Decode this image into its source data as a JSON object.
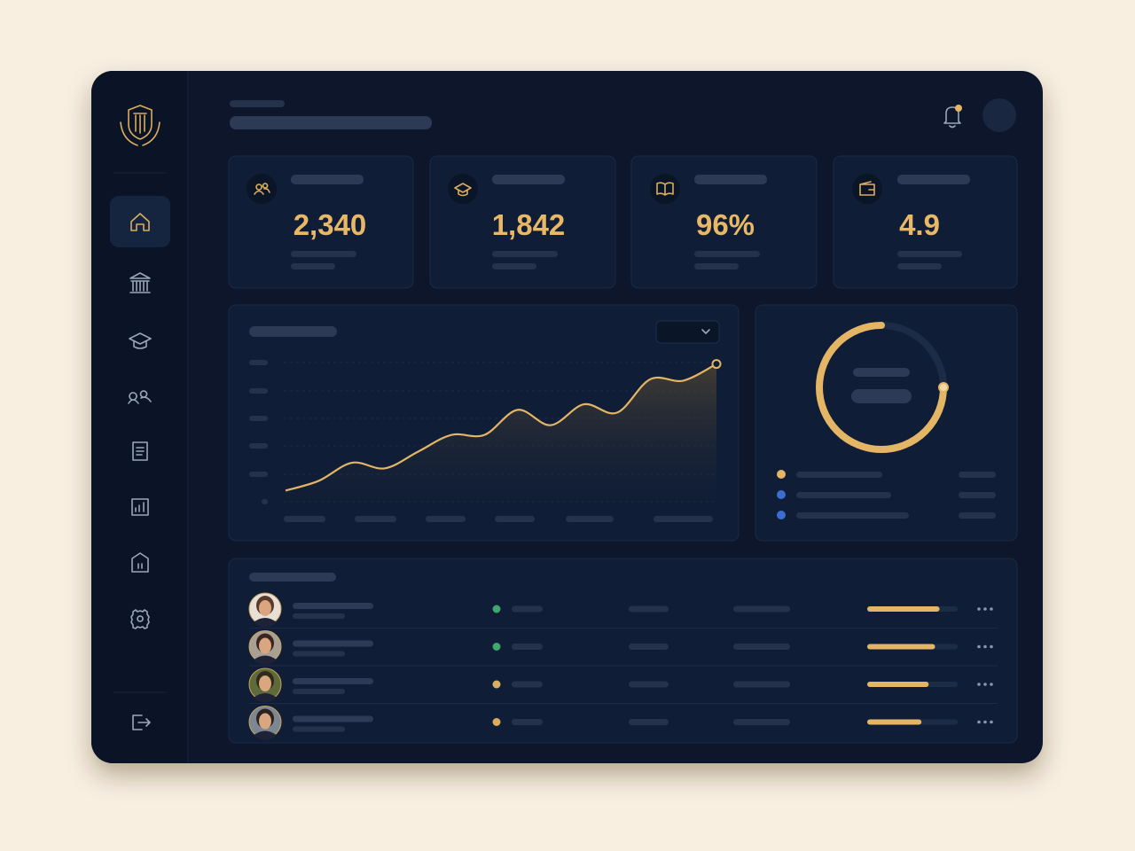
{
  "stats": [
    {
      "value": "2,340"
    },
    {
      "value": "1,842"
    },
    {
      "value": "96%"
    },
    {
      "value": "4.9"
    }
  ],
  "trend_chart": {
    "type": "line",
    "values": [
      8,
      15,
      28,
      24,
      36,
      48,
      48,
      66,
      55,
      70,
      64,
      88,
      87,
      99
    ],
    "ylim": [
      0,
      100
    ],
    "color": "#e3b565"
  },
  "donut_chart": {
    "type": "pie",
    "value": 75,
    "color": "#e3b565"
  },
  "table": {
    "rows": [
      {
        "status": "green",
        "progress": 80
      },
      {
        "status": "green",
        "progress": 75
      },
      {
        "status": "gold",
        "progress": 68
      },
      {
        "status": "gold",
        "progress": 60
      }
    ]
  }
}
